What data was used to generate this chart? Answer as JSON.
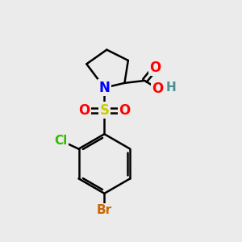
{
  "background_color": "#ebebeb",
  "bond_color": "#000000",
  "bond_width": 1.8,
  "atom_colors": {
    "N": "#0000ff",
    "S": "#cccc00",
    "O": "#ff0000",
    "Cl": "#33bb00",
    "Br": "#cc6600",
    "C": "#000000",
    "H": "#4a9090"
  },
  "font_size": 11,
  "figsize": [
    3.0,
    3.0
  ],
  "dpi": 100
}
